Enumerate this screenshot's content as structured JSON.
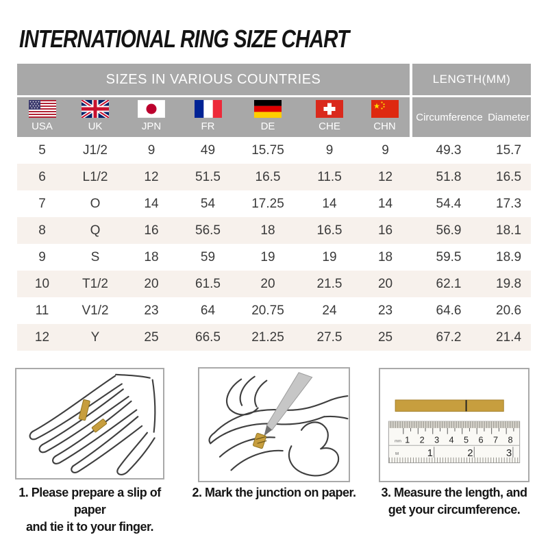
{
  "page_title": "INTERNATIONAL RING SIZE CHART",
  "table": {
    "header_left": "SIZES IN VARIOUS COUNTRIES",
    "header_right": "LENGTH(MM)",
    "countries": [
      {
        "code": "USA",
        "flag": "usa-flag-icon"
      },
      {
        "code": "UK",
        "flag": "uk-flag-icon"
      },
      {
        "code": "JPN",
        "flag": "japan-flag-icon"
      },
      {
        "code": "FR",
        "flag": "france-flag-icon"
      },
      {
        "code": "DE",
        "flag": "germany-flag-icon"
      },
      {
        "code": "CHE",
        "flag": "switzerland-flag-icon"
      },
      {
        "code": "CHN",
        "flag": "china-flag-icon"
      }
    ],
    "length_columns": [
      "Circumference",
      "Diameter"
    ]
  },
  "chart_data": {
    "type": "table",
    "title": "INTERNATIONAL RING SIZE CHART",
    "column_groups": [
      "SIZES IN VARIOUS COUNTRIES",
      "LENGTH(MM)"
    ],
    "columns": [
      "USA",
      "UK",
      "JPN",
      "FR",
      "DE",
      "CHE",
      "CHN",
      "Circumference",
      "Diameter"
    ],
    "rows": [
      [
        "5",
        "J1/2",
        "9",
        "49",
        "15.75",
        "9",
        "9",
        "49.3",
        "15.7"
      ],
      [
        "6",
        "L1/2",
        "12",
        "51.5",
        "16.5",
        "11.5",
        "12",
        "51.8",
        "16.5"
      ],
      [
        "7",
        "O",
        "14",
        "54",
        "17.25",
        "14",
        "14",
        "54.4",
        "17.3"
      ],
      [
        "8",
        "Q",
        "16",
        "56.5",
        "18",
        "16.5",
        "16",
        "56.9",
        "18.1"
      ],
      [
        "9",
        "S",
        "18",
        "59",
        "19",
        "19",
        "18",
        "59.5",
        "18.9"
      ],
      [
        "10",
        "T1/2",
        "20",
        "61.5",
        "20",
        "21.5",
        "20",
        "62.1",
        "19.8"
      ],
      [
        "11",
        "V1/2",
        "23",
        "64",
        "20.75",
        "24",
        "23",
        "64.6",
        "20.6"
      ],
      [
        "12",
        "Y",
        "25",
        "66.5",
        "21.25",
        "27.5",
        "25",
        "67.2",
        "21.4"
      ]
    ]
  },
  "steps": [
    {
      "illustration": "hand-with-paper-strip-illustration",
      "lines": [
        "1. Please prepare a slip of paper",
        "and tie it to your finger."
      ]
    },
    {
      "illustration": "mark-junction-illustration",
      "lines": [
        "2. Mark the junction on paper."
      ]
    },
    {
      "illustration": "ruler-measure-illustration",
      "lines": [
        "3. Measure the length, and",
        "get your circumference."
      ],
      "ruler_cm_labels": [
        "1",
        "2",
        "3",
        "4",
        "5",
        "6",
        "7",
        "8"
      ],
      "ruler_inch_labels": [
        "1",
        "2",
        "3"
      ],
      "ruler_unit_cm": "mm",
      "ruler_unit_inch": "M"
    }
  ],
  "colors": {
    "header_gray": "#a8a8a8",
    "alt_row": "#f7f1ec",
    "paper_strip_gold": "#c79e3e",
    "data_text": "#3a3a3a",
    "title_text": "#141414"
  }
}
